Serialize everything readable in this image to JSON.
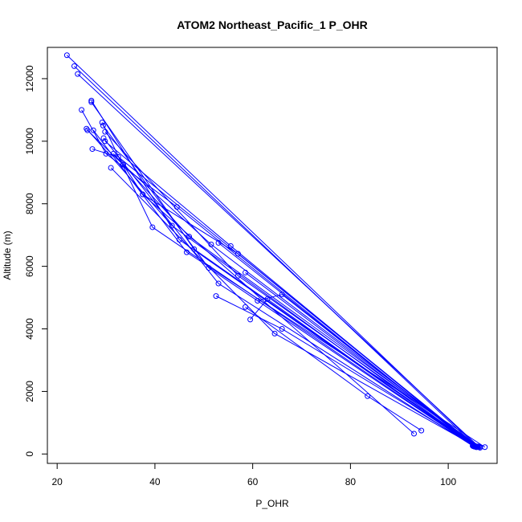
{
  "chart_data": {
    "type": "line",
    "title": "ATOM2 Northeast_Pacific_1 P_OHR",
    "xlabel": "P_OHR",
    "ylabel": "Altitude (m)",
    "xlim": [
      18,
      110
    ],
    "ylim": [
      -300,
      13000
    ],
    "xticks": [
      20,
      40,
      60,
      80,
      100
    ],
    "yticks": [
      0,
      2000,
      4000,
      6000,
      8000,
      10000,
      12000
    ],
    "grid": false,
    "legend": "none",
    "color": "#0000ff",
    "series": [
      {
        "x": [
          22.0,
          106.0
        ],
        "y": [
          12750,
          230
        ]
      },
      {
        "x": [
          23.5,
          105.5
        ],
        "y": [
          12400,
          260
        ]
      },
      {
        "x": [
          24.2,
          106.5
        ],
        "y": [
          12150,
          200
        ]
      },
      {
        "x": [
          27.0,
          45.0,
          105.3
        ],
        "y": [
          11300,
          6850,
          250
        ]
      },
      {
        "x": [
          27.0,
          48.0,
          105.8
        ],
        "y": [
          11250,
          6550,
          220
        ]
      },
      {
        "x": [
          25.0,
          30.0,
          44.5,
          105.0
        ],
        "y": [
          11000,
          9600,
          7900,
          260
        ]
      },
      {
        "x": [
          29.2,
          39.5,
          105.4
        ],
        "y": [
          10600,
          7250,
          240
        ]
      },
      {
        "x": [
          29.4,
          51.0,
          105.2
        ],
        "y": [
          10500,
          5950,
          250
        ]
      },
      {
        "x": [
          26.0,
          43.5,
          105.6
        ],
        "y": [
          10400,
          7300,
          230
        ]
      },
      {
        "x": [
          27.4,
          46.5,
          107.5
        ],
        "y": [
          10350,
          6450,
          220
        ]
      },
      {
        "x": [
          29.8,
          57.0,
          106.2
        ],
        "y": [
          10300,
          5700,
          240
        ]
      },
      {
        "x": [
          29.5,
          53.0,
          105.1
        ],
        "y": [
          10100,
          5450,
          250
        ]
      },
      {
        "x": [
          26.2,
          33.5,
          37.5,
          93.0
        ],
        "y": [
          10350,
          9250,
          8300,
          650
        ]
      },
      {
        "x": [
          27.2,
          32.5,
          105.7
        ],
        "y": [
          9750,
          9500,
          220
        ]
      },
      {
        "x": [
          29.8,
          55.5,
          105.3
        ],
        "y": [
          10000,
          6650,
          240
        ]
      },
      {
        "x": [
          31.5,
          47.0,
          106.4
        ],
        "y": [
          9600,
          6950,
          230
        ]
      },
      {
        "x": [
          33.5,
          51.5,
          106.0
        ],
        "y": [
          9250,
          6700,
          240
        ]
      },
      {
        "x": [
          31.0,
          64.5,
          105.5
        ],
        "y": [
          9150,
          3850,
          250
        ]
      },
      {
        "x": [
          37.5,
          57.0,
          105.8
        ],
        "y": [
          8300,
          6400,
          230
        ]
      },
      {
        "x": [
          53.0,
          105.4
        ],
        "y": [
          6750,
          240
        ]
      },
      {
        "x": [
          58.5,
          105.9
        ],
        "y": [
          5800,
          220
        ]
      },
      {
        "x": [
          52.5,
          66.0,
          105.6
        ],
        "y": [
          5050,
          4000,
          230
        ]
      },
      {
        "x": [
          58.5,
          83.5,
          94.5
        ],
        "y": [
          4700,
          1850,
          750
        ]
      },
      {
        "x": [
          59.5,
          63.0,
          105.3
        ],
        "y": [
          4300,
          4950,
          250
        ]
      },
      {
        "x": [
          61.0,
          66.0,
          105.5
        ],
        "y": [
          4900,
          5100,
          240
        ]
      }
    ]
  }
}
